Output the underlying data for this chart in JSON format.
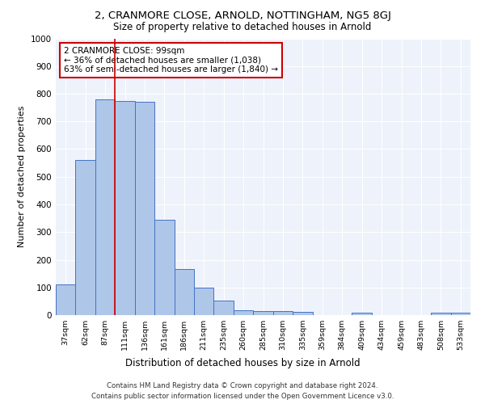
{
  "title1": "2, CRANMORE CLOSE, ARNOLD, NOTTINGHAM, NG5 8GJ",
  "title2": "Size of property relative to detached houses in Arnold",
  "xlabel": "Distribution of detached houses by size in Arnold",
  "ylabel": "Number of detached properties",
  "categories": [
    "37sqm",
    "62sqm",
    "87sqm",
    "111sqm",
    "136sqm",
    "161sqm",
    "186sqm",
    "211sqm",
    "235sqm",
    "260sqm",
    "285sqm",
    "310sqm",
    "335sqm",
    "359sqm",
    "384sqm",
    "409sqm",
    "434sqm",
    "459sqm",
    "483sqm",
    "508sqm",
    "533sqm"
  ],
  "values": [
    110,
    560,
    780,
    775,
    770,
    345,
    165,
    100,
    52,
    18,
    15,
    15,
    12,
    0,
    0,
    8,
    0,
    0,
    0,
    8,
    8
  ],
  "bar_color": "#aec6e8",
  "bar_edge_color": "#4472c4",
  "vline_x_index": 2,
  "vline_color": "#cc0000",
  "annotation_text": "2 CRANMORE CLOSE: 99sqm\n← 36% of detached houses are smaller (1,038)\n63% of semi-detached houses are larger (1,840) →",
  "annotation_box_color": "#cc0000",
  "annotation_text_color": "#000000",
  "ylim": [
    0,
    1000
  ],
  "yticks": [
    0,
    100,
    200,
    300,
    400,
    500,
    600,
    700,
    800,
    900,
    1000
  ],
  "background_color": "#eef2fb",
  "footer_line1": "Contains HM Land Registry data © Crown copyright and database right 2024.",
  "footer_line2": "Contains public sector information licensed under the Open Government Licence v3.0."
}
